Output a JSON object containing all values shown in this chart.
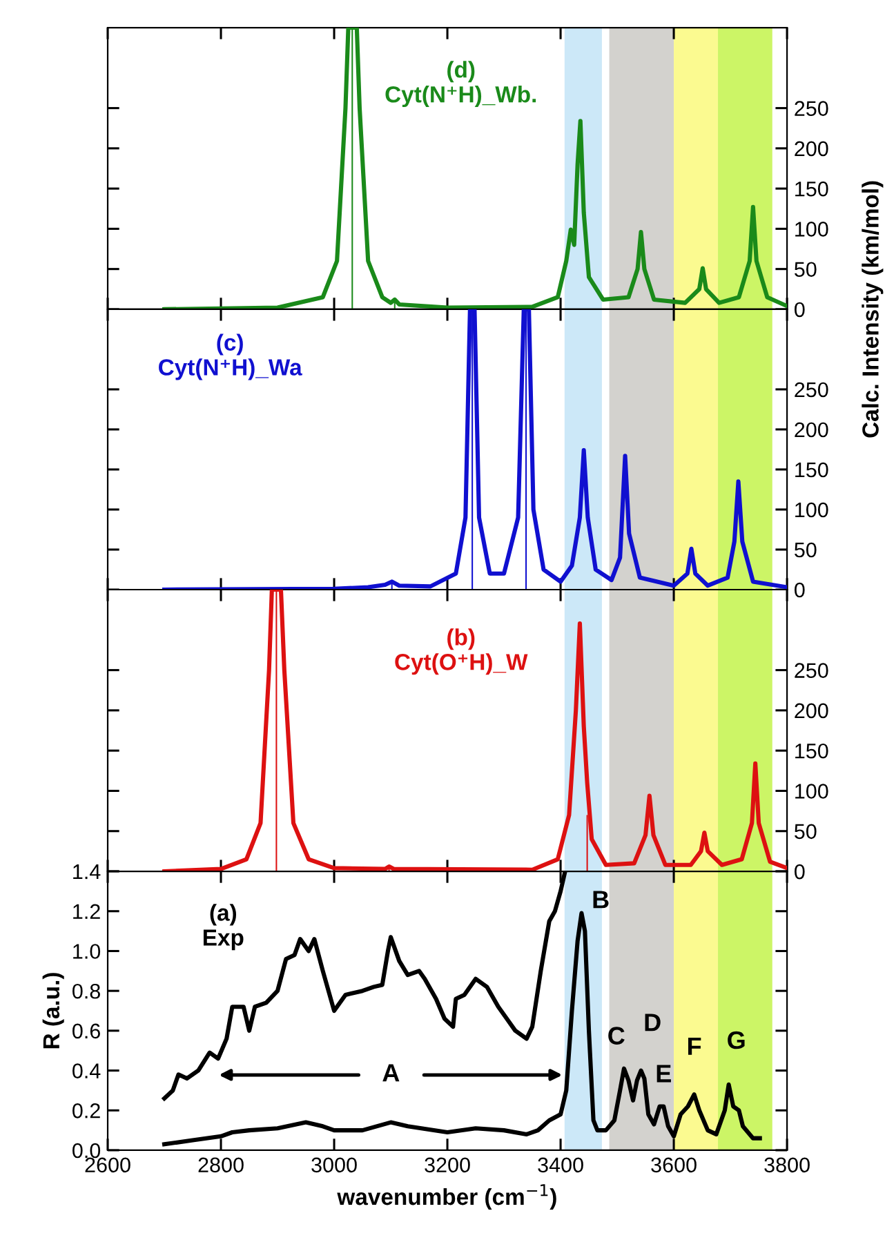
{
  "chart_data": [
    {
      "type": "line",
      "xlim": [
        2600,
        3800
      ],
      "xticks": [
        2600,
        2800,
        3000,
        3200,
        3400,
        3600,
        3800
      ],
      "y2lim": [
        0,
        350
      ],
      "y2ticks": [
        0,
        50,
        100,
        150,
        200,
        250
      ],
      "tick_labels": "y",
      "grid": false,
      "annotations": [
        "(d)\nCyt(N⁺H)_Wb."
      ],
      "bands": [
        {
          "axis": "x",
          "from": 3407,
          "to": 3473,
          "color": "#cce8f8"
        },
        {
          "axis": "x",
          "from": 3486,
          "to": 3600,
          "color": "#d3d2ce"
        },
        {
          "axis": "x",
          "from": 3600,
          "to": 3678,
          "color": "#fbfa90"
        },
        {
          "axis": "x",
          "from": 3678,
          "to": 3774,
          "color": "#ccf566"
        }
      ],
      "series": [
        {
          "axis": "y2",
          "color": "#1a8a1a",
          "x": [
            2700,
            2900,
            2980,
            3005,
            3020,
            3025,
            3040,
            3045,
            3060,
            3085,
            3100,
            3107,
            3115,
            3200,
            3350,
            3395,
            3410,
            3418,
            3424,
            3430,
            3435,
            3441,
            3450,
            3475,
            3520,
            3536,
            3542,
            3548,
            3565,
            3620,
            3645,
            3651,
            3657,
            3680,
            3715,
            3734,
            3740,
            3746,
            3765,
            3800
          ],
          "values": [
            0,
            2,
            15,
            60,
            250,
            350,
            350,
            250,
            60,
            15,
            8,
            12,
            6,
            2,
            3,
            15,
            60,
            99,
            80,
            180,
            234,
            120,
            40,
            12,
            15,
            50,
            96,
            50,
            12,
            8,
            25,
            51,
            25,
            8,
            15,
            60,
            127,
            60,
            15,
            4
          ]
        },
        {
          "type": "bar",
          "axis": "y2",
          "color": "#1a8a1a",
          "x": [
            3032,
            3107
          ],
          "values": [
            350,
            12
          ]
        }
      ]
    },
    {
      "type": "line",
      "xlim": [
        2600,
        3800
      ],
      "xticks": [
        2600,
        2800,
        3000,
        3200,
        3400,
        3600,
        3800
      ],
      "y2lim": [
        0,
        350
      ],
      "y2ticks": [
        0,
        50,
        100,
        150,
        200,
        250
      ],
      "y2label": "Calc. Intensity (km/mol)",
      "tick_labels": "y",
      "grid": false,
      "annotations": [
        "(c)\nCyt(N⁺H)_Wa"
      ],
      "bands": [
        {
          "axis": "x",
          "from": 3407,
          "to": 3473,
          "color": "#cce8f8"
        },
        {
          "axis": "x",
          "from": 3486,
          "to": 3600,
          "color": "#d3d2ce"
        },
        {
          "axis": "x",
          "from": 3600,
          "to": 3678,
          "color": "#fbfa90"
        },
        {
          "axis": "x",
          "from": 3678,
          "to": 3774,
          "color": "#ccf566"
        }
      ],
      "series": [
        {
          "axis": "y2",
          "color": "#1010d0",
          "x": [
            2700,
            3000,
            3060,
            3090,
            3102,
            3115,
            3170,
            3215,
            3232,
            3240,
            3248,
            3256,
            3275,
            3300,
            3325,
            3335,
            3344,
            3352,
            3370,
            3400,
            3420,
            3434,
            3441,
            3448,
            3462,
            3490,
            3505,
            3514,
            3521,
            3540,
            3600,
            3624,
            3631,
            3638,
            3660,
            3695,
            3707,
            3714,
            3721,
            3740,
            3800
          ],
          "values": [
            0,
            1,
            3,
            6,
            10,
            5,
            4,
            20,
            90,
            350,
            350,
            90,
            20,
            20,
            90,
            350,
            350,
            100,
            25,
            10,
            30,
            90,
            174,
            90,
            25,
            12,
            40,
            167,
            70,
            15,
            5,
            20,
            51,
            20,
            5,
            15,
            60,
            135,
            60,
            10,
            3
          ]
        },
        {
          "type": "bar",
          "axis": "y2",
          "color": "#1010d0",
          "x": [
            3102,
            3244,
            3339
          ],
          "values": [
            10,
            350,
            350
          ]
        }
      ]
    },
    {
      "type": "line",
      "xlim": [
        2600,
        3800
      ],
      "xticks": [
        2600,
        2800,
        3000,
        3200,
        3400,
        3600,
        3800
      ],
      "y2lim": [
        0,
        350
      ],
      "y2ticks": [
        0,
        50,
        100,
        150,
        200,
        250
      ],
      "tick_labels": "y",
      "grid": false,
      "annotations": [
        "(b)\nCyt(O⁺H)_W"
      ],
      "bands": [
        {
          "axis": "x",
          "from": 3407,
          "to": 3473,
          "color": "#cce8f8"
        },
        {
          "axis": "x",
          "from": 3486,
          "to": 3600,
          "color": "#d3d2ce"
        },
        {
          "axis": "x",
          "from": 3600,
          "to": 3678,
          "color": "#fbfa90"
        },
        {
          "axis": "x",
          "from": 3678,
          "to": 3774,
          "color": "#ccf566"
        }
      ],
      "series": [
        {
          "axis": "y2",
          "color": "#dd1111",
          "x": [
            2700,
            2800,
            2845,
            2870,
            2885,
            2890,
            2906,
            2912,
            2928,
            2955,
            3000,
            3090,
            3097,
            3105,
            3350,
            3395,
            3415,
            3427,
            3434,
            3441,
            3447,
            3455,
            3480,
            3530,
            3550,
            3557,
            3564,
            3585,
            3630,
            3648,
            3654,
            3660,
            3685,
            3720,
            3738,
            3744,
            3750,
            3770,
            3800
          ],
          "values": [
            0,
            3,
            15,
            60,
            250,
            350,
            350,
            250,
            60,
            15,
            4,
            3,
            6,
            3,
            2,
            15,
            70,
            200,
            308,
            180,
            110,
            40,
            8,
            10,
            45,
            94,
            45,
            8,
            8,
            25,
            48,
            25,
            8,
            15,
            60,
            134,
            60,
            12,
            4
          ]
        },
        {
          "type": "bar",
          "axis": "y2",
          "color": "#dd1111",
          "x": [
            2898,
            3097,
            3447
          ],
          "values": [
            350,
            5,
            70
          ]
        }
      ]
    },
    {
      "type": "line",
      "xlim": [
        2600,
        3800
      ],
      "xticks": [
        2600,
        2800,
        3000,
        3200,
        3400,
        3600,
        3800
      ],
      "ylim": [
        0,
        1.4
      ],
      "yticks": [
        {
          "value": 0,
          "label": "0.0"
        },
        0.2,
        0.4,
        0.6,
        0.8,
        {
          "value": 1,
          "label": "1.0"
        },
        1.2,
        1.4
      ],
      "xlabel": "wavenumber (cm$^{−1}$)",
      "ylabel": "R (a.u.)",
      "grid": false,
      "annotations": [
        "(a)\nExp",
        "A",
        {
          "text": "B",
          "x": 3437,
          "y": 1.19
        },
        {
          "text": "C",
          "x": 3512,
          "y": 0.41
        },
        {
          "text": "D",
          "x": 3542,
          "y": 0.4
        },
        {
          "text": "E",
          "x": 3582,
          "y": 0.22
        },
        {
          "text": "F",
          "x": 3636,
          "y": 0.28
        },
        {
          "text": "G",
          "x": 3697,
          "y": 0.33
        }
      ],
      "bands": [
        {
          "axis": "x",
          "from": 3407,
          "to": 3473,
          "color": "#cce8f8"
        },
        {
          "axis": "x",
          "from": 3486,
          "to": 3600,
          "color": "#d3d2ce"
        },
        {
          "axis": "x",
          "from": 3600,
          "to": 3678,
          "color": "#fbfa90"
        },
        {
          "axis": "x",
          "from": 3678,
          "to": 3774,
          "color": "#ccf566"
        }
      ],
      "series": [
        {
          "color": "#000000",
          "x": [
            2700,
            2715,
            2725,
            2740,
            2760,
            2780,
            2795,
            2810,
            2820,
            2840,
            2850,
            2860,
            2880,
            2900,
            2915,
            2930,
            2940,
            2955,
            2965,
            2980,
            3000,
            3020,
            3050,
            3070,
            3085,
            3095,
            3100,
            3115,
            3130,
            3150,
            3160,
            3180,
            3195,
            3210,
            3215,
            3230,
            3250,
            3270,
            3290,
            3305,
            3320,
            3340,
            3350,
            3365,
            3380,
            3390,
            3400,
            3408
          ],
          "values": [
            0.26,
            0.3,
            0.38,
            0.36,
            0.4,
            0.49,
            0.46,
            0.56,
            0.72,
            0.72,
            0.6,
            0.72,
            0.74,
            0.8,
            0.96,
            0.98,
            1.06,
            1.0,
            1.06,
            0.9,
            0.7,
            0.78,
            0.8,
            0.82,
            0.83,
            1.0,
            1.07,
            0.95,
            0.88,
            0.9,
            0.86,
            0.76,
            0.66,
            0.62,
            0.76,
            0.78,
            0.86,
            0.82,
            0.72,
            0.66,
            0.6,
            0.56,
            0.62,
            0.9,
            1.15,
            1.2,
            1.3,
            1.4
          ]
        },
        {
          "color": "#000000",
          "x": [
            2700,
            2750,
            2800,
            2820,
            2850,
            2900,
            2950,
            2980,
            3000,
            3050,
            3100,
            3130,
            3200,
            3250,
            3300,
            3340,
            3360,
            3380,
            3400,
            3410,
            3420,
            3430,
            3437,
            3443,
            3450,
            3458,
            3465,
            3480,
            3495,
            3505,
            3512,
            3520,
            3528,
            3535,
            3542,
            3548,
            3555,
            3565,
            3575,
            3582,
            3590,
            3600,
            3612,
            3625,
            3636,
            3645,
            3660,
            3675,
            3690,
            3697,
            3705,
            3715,
            3722,
            3740,
            3752
          ],
          "values": [
            0.03,
            0.05,
            0.07,
            0.09,
            0.1,
            0.11,
            0.14,
            0.12,
            0.1,
            0.1,
            0.14,
            0.12,
            0.09,
            0.11,
            0.1,
            0.08,
            0.1,
            0.15,
            0.18,
            0.3,
            0.7,
            1.05,
            1.19,
            1.1,
            0.6,
            0.15,
            0.1,
            0.1,
            0.15,
            0.3,
            0.41,
            0.35,
            0.25,
            0.35,
            0.4,
            0.36,
            0.18,
            0.13,
            0.22,
            0.22,
            0.12,
            0.07,
            0.18,
            0.22,
            0.28,
            0.2,
            0.1,
            0.08,
            0.2,
            0.33,
            0.22,
            0.2,
            0.12,
            0.06,
            0.06
          ]
        }
      ]
    }
  ]
}
